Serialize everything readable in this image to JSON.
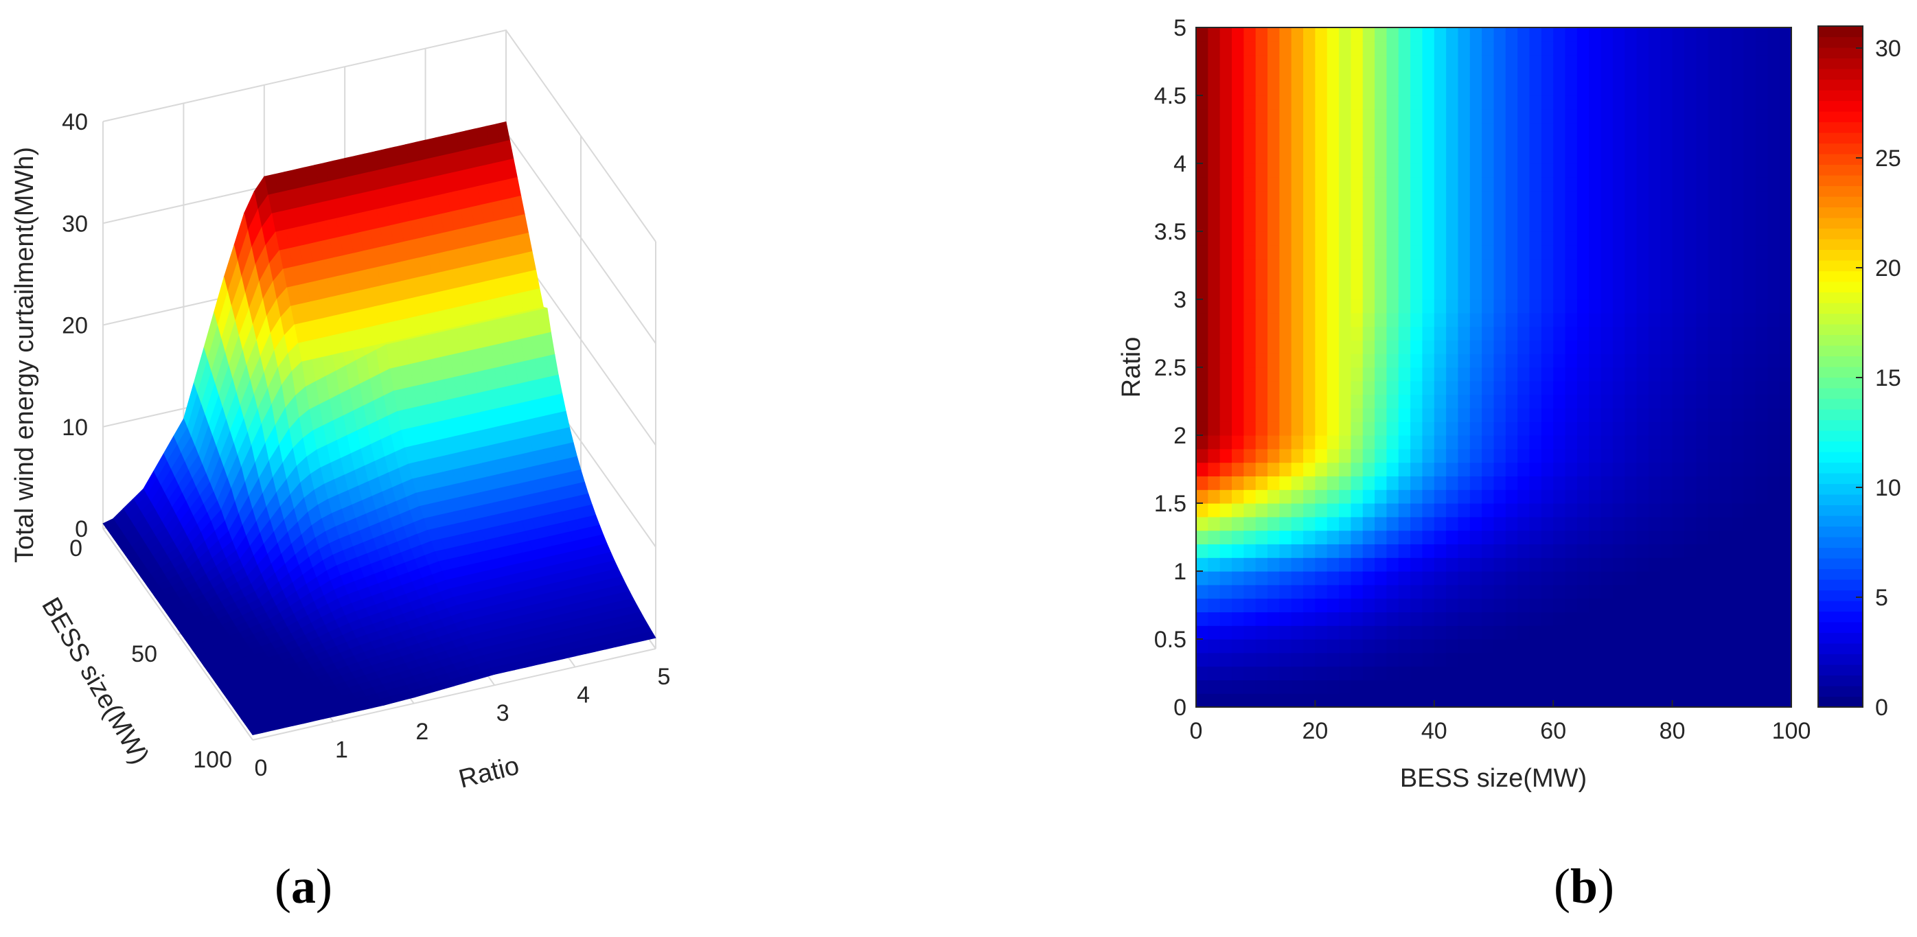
{
  "panels": {
    "a": {
      "label_open": "(",
      "label_letter": "a",
      "label_close": ")"
    },
    "b": {
      "label_open": "(",
      "label_letter": "b",
      "label_close": ")"
    }
  },
  "colormap": "jet",
  "chart_data": [
    {
      "type": "surface",
      "panel": "a",
      "xlabel": "BESS size(MW)",
      "ylabel": "Ratio",
      "zlabel": "Total wind energy curtailment(MWh)",
      "x_ticks": [
        "0",
        "50",
        "100"
      ],
      "y_ticks": [
        "0",
        "1",
        "2",
        "3",
        "4",
        "5"
      ],
      "z_ticks": [
        "0",
        "10",
        "20",
        "30",
        "40"
      ],
      "xlim": [
        0,
        100
      ],
      "ylim": [
        0,
        5
      ],
      "zlim": [
        0,
        40
      ],
      "color_range": [
        0,
        31
      ],
      "grid": true,
      "profile_over_ratio": {
        "ratio": [
          0,
          0.5,
          1.0,
          1.5,
          1.8,
          2.0,
          5.0
        ],
        "curtailment_at_bess_0": [
          0,
          3,
          9,
          22,
          29,
          31,
          31
        ]
      },
      "bess_knee_mw": 25,
      "floor_value": 0.5
    },
    {
      "type": "heatmap",
      "panel": "b",
      "xlabel": "BESS size(MW)",
      "ylabel": "Ratio",
      "x_ticks": [
        "0",
        "20",
        "40",
        "60",
        "80",
        "100"
      ],
      "y_ticks": [
        "0",
        "0.5",
        "1",
        "1.5",
        "2",
        "2.5",
        "3",
        "3.5",
        "4",
        "4.5",
        "5"
      ],
      "xlim": [
        0,
        100
      ],
      "ylim": [
        0,
        5
      ],
      "colorbar": {
        "ticks": [
          "0",
          "5",
          "10",
          "15",
          "20",
          "25",
          "30"
        ],
        "range": [
          0,
          31
        ],
        "placement": "right"
      },
      "grid": false
    }
  ]
}
